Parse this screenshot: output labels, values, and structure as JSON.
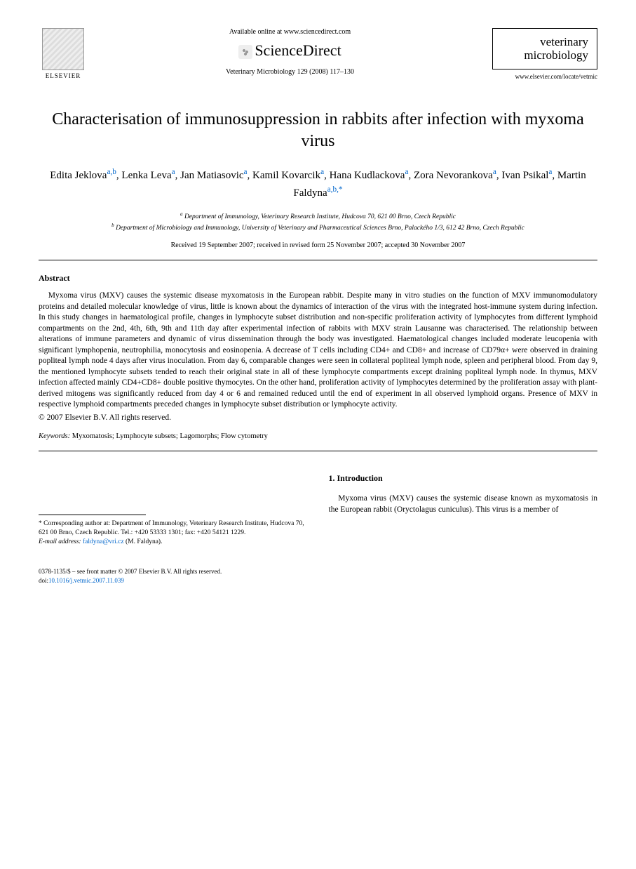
{
  "header": {
    "publisher_name": "ELSEVIER",
    "available_online": "Available online at www.sciencedirect.com",
    "sciencedirect": "ScienceDirect",
    "journal_ref": "Veterinary Microbiology 129 (2008) 117–130",
    "journal_box_name": "veterinary microbiology",
    "journal_url": "www.elsevier.com/locate/vetmic"
  },
  "title": "Characterisation of immunosuppression in rabbits after infection with myxoma virus",
  "authors": [
    {
      "name": "Edita Jeklova",
      "aff": "a,b"
    },
    {
      "name": "Lenka Leva",
      "aff": "a"
    },
    {
      "name": "Jan Matiasovic",
      "aff": "a"
    },
    {
      "name": "Kamil Kovarcik",
      "aff": "a"
    },
    {
      "name": "Hana Kudlackova",
      "aff": "a"
    },
    {
      "name": "Zora Nevorankova",
      "aff": "a"
    },
    {
      "name": "Ivan Psikal",
      "aff": "a"
    },
    {
      "name": "Martin Faldyna",
      "aff": "a,b,",
      "corr": true
    }
  ],
  "affiliations": {
    "a": "Department of Immunology, Veterinary Research Institute, Hudcova 70, 621 00 Brno, Czech Republic",
    "b": "Department of Microbiology and Immunology, University of Veterinary and Pharmaceutical Sciences Brno, Palackého 1/3, 612 42 Brno, Czech Republic"
  },
  "dates": "Received 19 September 2007; received in revised form 25 November 2007; accepted 30 November 2007",
  "abstract": {
    "heading": "Abstract",
    "text": "Myxoma virus (MXV) causes the systemic disease myxomatosis in the European rabbit. Despite many in vitro studies on the function of MXV immunomodulatory proteins and detailed molecular knowledge of virus, little is known about the dynamics of interaction of the virus with the integrated host-immune system during infection. In this study changes in haematological profile, changes in lymphocyte subset distribution and non-specific proliferation activity of lymphocytes from different lymphoid compartments on the 2nd, 4th, 6th, 9th and 11th day after experimental infection of rabbits with MXV strain Lausanne was characterised. The relationship between alterations of immune parameters and dynamic of virus dissemination through the body was investigated. Haematological changes included moderate leucopenia with significant lymphopenia, neutrophilia, monocytosis and eosinopenia. A decrease of T cells including CD4+ and CD8+ and increase of CD79α+ were observed in draining popliteal lymph node 4 days after virus inoculation. From day 6, comparable changes were seen in collateral popliteal lymph node, spleen and peripheral blood. From day 9, the mentioned lymphocyte subsets tended to reach their original state in all of these lymphocyte compartments except draining popliteal lymph node. In thymus, MXV infection affected mainly CD4+CD8+ double positive thymocytes. On the other hand, proliferation activity of lymphocytes determined by the proliferation assay with plant-derived mitogens was significantly reduced from day 4 or 6 and remained reduced until the end of experiment in all observed lymphoid organs. Presence of MXV in respective lymphoid compartments preceded changes in lymphocyte subset distribution or lymphocyte activity.",
    "copyright": "© 2007 Elsevier B.V. All rights reserved."
  },
  "keywords": {
    "label": "Keywords:",
    "text": " Myxomatosis; Lymphocyte subsets; Lagomorphs; Flow cytometry"
  },
  "footnote": {
    "corr_label": "* Corresponding author at: Department of Immunology, Veterinary Research Institute, Hudcova 70, 621 00 Brno, Czech Republic. Tel.: +420 53333 1301; fax: +420 54121 1229.",
    "email_label": "E-mail address:",
    "email": "faldyna@vri.cz",
    "email_name": "(M. Faldyna)."
  },
  "section1": {
    "heading": "1. Introduction",
    "text": "Myxoma virus (MXV) causes the systemic disease known as myxomatosis in the European rabbit (Oryctolagus cuniculus). This virus is a member of"
  },
  "footer": {
    "line1": "0378-1135/$ – see front matter © 2007 Elsevier B.V. All rights reserved.",
    "doi_label": "doi:",
    "doi": "10.1016/j.vetmic.2007.11.039"
  }
}
